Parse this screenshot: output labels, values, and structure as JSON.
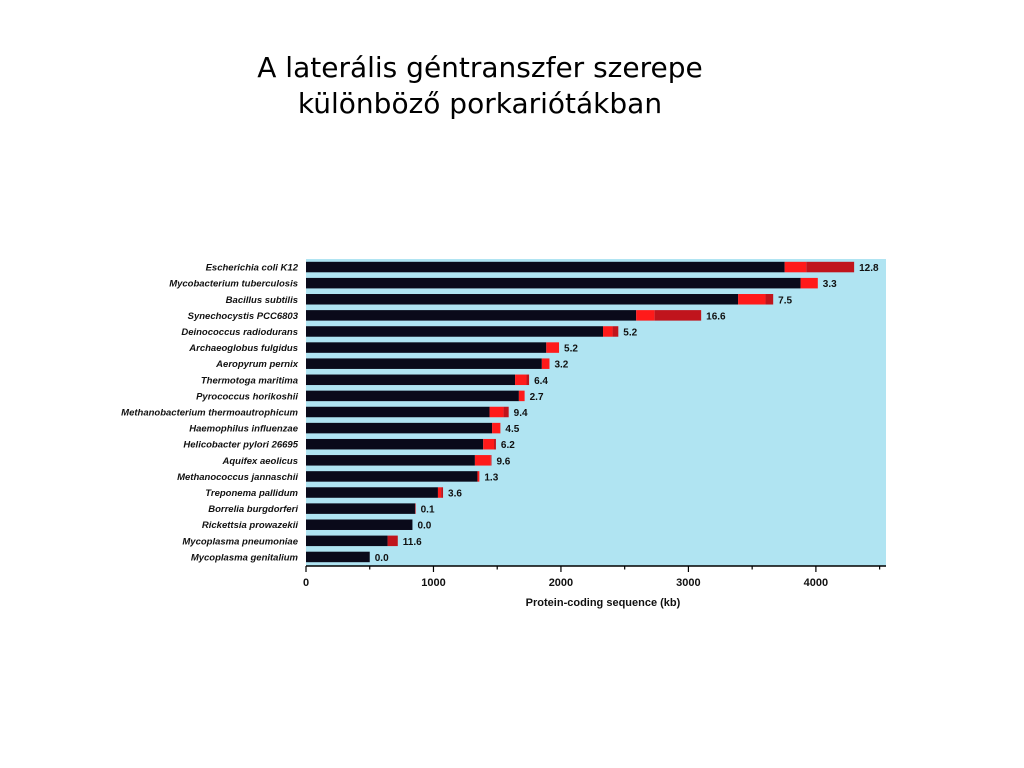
{
  "slide": {
    "title_line1": "A laterális géntranszfer szerepe",
    "title_line2": "különböző porkariótákban"
  },
  "colors": {
    "plot_background": "#b0e4f2",
    "native": "#0a0a1a",
    "transfer_recent": "#ff1a1a",
    "transfer_older": "#c0141c"
  },
  "chart_data": {
    "type": "bar",
    "orientation": "horizontal",
    "stacked": true,
    "xlabel": "Protein-coding sequence (kb)",
    "ylabel": "",
    "xlim": [
      0,
      4550
    ],
    "xticks": [
      0,
      1000,
      2000,
      3000,
      4000
    ],
    "grid": false,
    "categories": [
      "Escherichia coli K12",
      "Mycobacterium tuberculosis",
      "Bacillus subtilis",
      "Synechocystis PCC6803",
      "Deinococcus radiodurans",
      "Archaeoglobus fulgidus",
      "Aeropyrum pernix",
      "Thermotoga maritima",
      "Pyrococcus horikoshii",
      "Methanobacterium thermoautrophicum",
      "Haemophilus influenzae",
      "Helicobacter pylori 26695",
      "Aquifex aeolicus",
      "Methanococcus jannaschii",
      "Treponema pallidum",
      "Borrelia burgdorferi",
      "Rickettsia prowazekii",
      "Mycoplasma pneumoniae",
      "Mycoplasma genitalium"
    ],
    "series": [
      {
        "values": [
          3755,
          3880,
          3390,
          2590,
          2330,
          1885,
          1850,
          1640,
          1670,
          1440,
          1460,
          1390,
          1325,
          1345,
          1035,
          855,
          835,
          640,
          500
        ]
      },
      {
        "values": [
          170,
          135,
          215,
          145,
          75,
          100,
          60,
          90,
          45,
          110,
          65,
          85,
          125,
          15,
          25,
          0,
          0,
          0,
          0
        ]
      },
      {
        "values": [
          375,
          0,
          60,
          365,
          45,
          0,
          0,
          20,
          0,
          40,
          0,
          15,
          5,
          0,
          15,
          5,
          0,
          80,
          0
        ]
      }
    ],
    "data_labels": [
      "12.8",
      "3.3",
      "7.5",
      "16.6",
      "5.2",
      "5.2",
      "3.2",
      "6.4",
      "2.7",
      "9.4",
      "4.5",
      "6.2",
      "9.6",
      "1.3",
      "3.6",
      "0.1",
      "0.0",
      "11.6",
      "0.0"
    ]
  }
}
